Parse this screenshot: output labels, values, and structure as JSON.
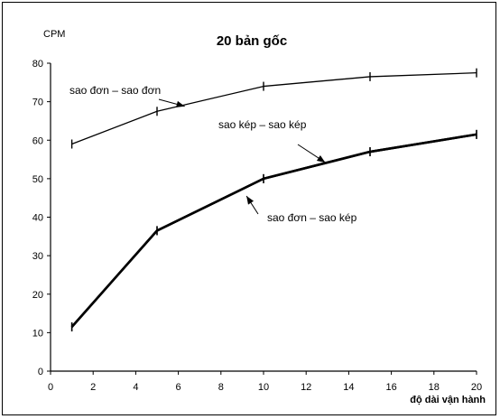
{
  "chart_data": {
    "type": "line",
    "title": "20 bản gốc",
    "ylabel": "CPM",
    "xlabel": "độ dài vận hành",
    "xlim": [
      0,
      20
    ],
    "ylim": [
      0,
      80
    ],
    "x_ticks": [
      0,
      2,
      4,
      6,
      8,
      10,
      12,
      14,
      16,
      18,
      20
    ],
    "y_ticks": [
      0,
      10,
      20,
      30,
      40,
      50,
      60,
      70,
      80
    ],
    "grid": false,
    "series": [
      {
        "name": "sao đơn – sao đơn",
        "x": [
          1,
          5,
          10,
          15,
          20
        ],
        "y": [
          59,
          67.5,
          74,
          76.5,
          77.5
        ],
        "stroke": "#000000",
        "weight": "normal"
      },
      {
        "name": "sao kép – sao kép",
        "x": [
          1,
          5,
          10,
          15,
          20
        ],
        "y": [
          11.5,
          36.5,
          50,
          57,
          61.5
        ],
        "stroke": "#000000",
        "weight": "bold"
      },
      {
        "name": "sao đơn – sao kép",
        "x": [
          1,
          5,
          10,
          15,
          20
        ],
        "y": [
          11.5,
          36.5,
          50,
          57,
          61.5
        ],
        "stroke": "#000000",
        "weight": "bold"
      }
    ],
    "annotations": [
      {
        "text": "sao đơn – sao đơn",
        "points_to": [
          6.3,
          68.8
        ]
      },
      {
        "text": "sao kép – sao kép",
        "points_to": [
          12.9,
          54.2
        ]
      },
      {
        "text": "sao đơn – sao kép",
        "points_to": [
          9.2,
          45.5
        ]
      }
    ]
  }
}
